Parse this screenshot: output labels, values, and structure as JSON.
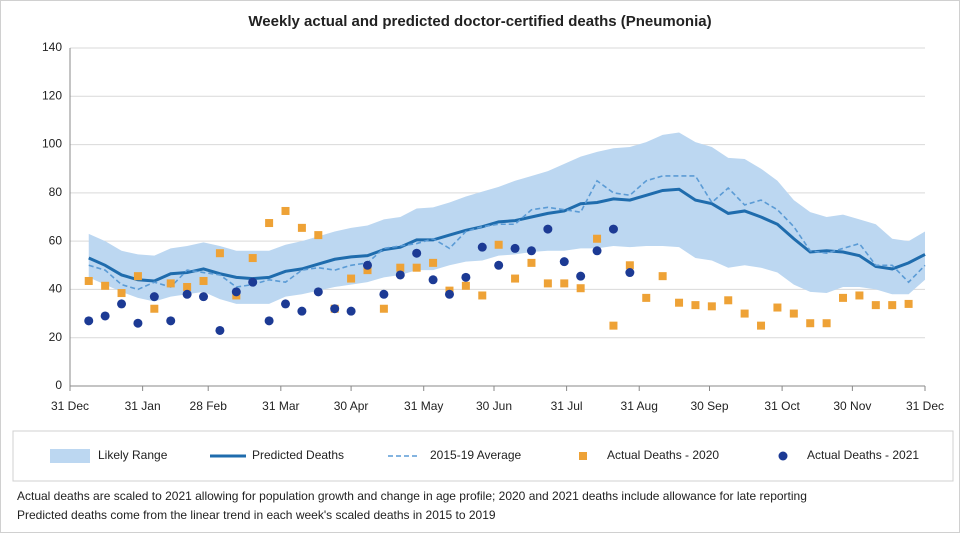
{
  "chart_data": {
    "type": "line",
    "title": "Weekly actual and predicted doctor-certified deaths (Pneumonia)",
    "xlim": [
      0,
      365
    ],
    "xticks": [
      {
        "value": 0,
        "label": "31 Dec"
      },
      {
        "value": 31,
        "label": "31 Jan"
      },
      {
        "value": 59,
        "label": "28 Feb"
      },
      {
        "value": 90,
        "label": "31 Mar"
      },
      {
        "value": 120,
        "label": "30 Apr"
      },
      {
        "value": 151,
        "label": "31 May"
      },
      {
        "value": 181,
        "label": "30 Jun"
      },
      {
        "value": 212,
        "label": "31 Jul"
      },
      {
        "value": 243,
        "label": "31 Aug"
      },
      {
        "value": 273,
        "label": "30 Sep"
      },
      {
        "value": 304,
        "label": "31 Oct"
      },
      {
        "value": 334,
        "label": "30 Nov"
      },
      {
        "value": 365,
        "label": "31 Dec"
      }
    ],
    "ylim": [
      0,
      140
    ],
    "yticks": [
      0,
      20,
      40,
      60,
      80,
      100,
      120,
      140
    ],
    "grid": true,
    "x": [
      8,
      15,
      22,
      29,
      36,
      43,
      50,
      57,
      64,
      71,
      78,
      85,
      92,
      99,
      106,
      113,
      120,
      127,
      134,
      141,
      148,
      155,
      162,
      169,
      176,
      183,
      190,
      197,
      204,
      211,
      218,
      225,
      232,
      239,
      246,
      253,
      260,
      267,
      274,
      281,
      288,
      295,
      302,
      309,
      316,
      323,
      330,
      337,
      344,
      351,
      358,
      365
    ],
    "series": [
      {
        "name": "Likely Range",
        "style": "band",
        "color": "#bcd7f1",
        "upper": [
          63,
          60,
          56,
          54.5,
          54,
          57,
          58,
          59.5,
          58,
          56,
          56,
          56,
          58.5,
          60,
          62,
          64,
          65.5,
          66.5,
          69,
          70,
          73.5,
          74,
          76,
          78.5,
          80.5,
          82.5,
          85,
          87,
          89,
          92,
          95,
          97,
          98.5,
          99,
          101,
          104,
          105,
          101,
          99,
          94.5,
          94,
          90,
          85,
          77,
          72,
          70,
          71,
          69,
          67,
          61,
          60,
          64
        ],
        "lower": [
          45,
          42,
          39,
          36.5,
          35,
          37,
          38,
          39,
          36,
          34,
          34,
          34,
          37,
          38,
          39.5,
          41,
          42,
          43,
          45,
          46,
          48,
          48,
          50,
          51.5,
          52,
          54,
          54.5,
          55.5,
          56,
          56,
          57,
          57,
          58,
          57.5,
          58,
          58,
          57.5,
          53,
          52,
          49,
          50,
          49,
          47,
          42,
          39,
          38.5,
          41,
          41,
          40,
          38,
          38,
          44
        ]
      },
      {
        "name": "Predicted Deaths",
        "style": "line",
        "color": "#1f6cad",
        "values": [
          53,
          50,
          46,
          44,
          43.5,
          46.5,
          47,
          48.5,
          46.5,
          45,
          44.5,
          45,
          47.5,
          48.5,
          50.5,
          52.5,
          53.5,
          54,
          56.5,
          57.5,
          60.5,
          60.5,
          62.5,
          64.5,
          66,
          68,
          68.5,
          70,
          71.5,
          72.5,
          75.5,
          76,
          77.5,
          77,
          79,
          81,
          81.5,
          77,
          75.5,
          71.5,
          72.5,
          70,
          67,
          61,
          55.5,
          56,
          55.5,
          54,
          49.5,
          48.5,
          51,
          54.5
        ]
      },
      {
        "name": "2015-19 Average",
        "style": "dashed",
        "color": "#5b9bd5",
        "values": [
          50,
          48,
          42,
          40,
          43,
          41,
          48,
          47,
          46,
          41,
          42,
          44,
          43,
          48,
          49,
          48,
          50,
          51,
          57,
          58,
          59,
          61,
          57,
          64,
          66,
          67,
          67,
          73,
          74,
          73,
          72,
          85,
          80,
          79,
          85,
          87,
          87,
          87,
          76,
          82,
          75,
          77,
          73,
          66,
          56,
          55,
          57,
          59,
          50,
          50,
          43,
          50
        ]
      },
      {
        "name": "Actual Deaths - 2020",
        "style": "square",
        "color": "#eea236",
        "values": [
          43.5,
          41.5,
          38.5,
          45.5,
          32,
          42.5,
          41,
          43.5,
          55,
          37.5,
          53,
          67.5,
          72.5,
          65.5,
          62.5,
          32,
          44.5,
          48,
          32,
          49,
          49,
          51,
          39.5,
          41.5,
          37.5,
          58.5,
          44.5,
          51,
          42.5,
          42.5,
          40.5,
          61,
          25,
          50,
          36.5,
          45.5,
          34.5,
          33.5,
          33,
          35.5,
          30,
          25,
          32.5,
          30,
          26,
          26,
          36.5,
          37.5,
          33.5,
          33.5,
          34,
          null
        ]
      },
      {
        "name": "Actual Deaths - 2021",
        "style": "circle",
        "color": "#1c3a94",
        "values": [
          27,
          29,
          34,
          26,
          37,
          27,
          38,
          37,
          23,
          39,
          43,
          27,
          34,
          31,
          39,
          32,
          31,
          50,
          38,
          46,
          55,
          44,
          38,
          45,
          57.5,
          50,
          57,
          56,
          65,
          51.5,
          45.5,
          56,
          65,
          47,
          null,
          null,
          null,
          null,
          null,
          null,
          null,
          null,
          null,
          null,
          null,
          null,
          null,
          null,
          null,
          null,
          null,
          null
        ]
      }
    ],
    "notes": [
      "Actual deaths are scaled to 2021 allowing for population growth and change in age profile; 2020 and 2021 deaths include allowance for late reporting",
      "Predicted deaths come from the linear trend in each week's scaled deaths in 2015 to 2019"
    ]
  }
}
